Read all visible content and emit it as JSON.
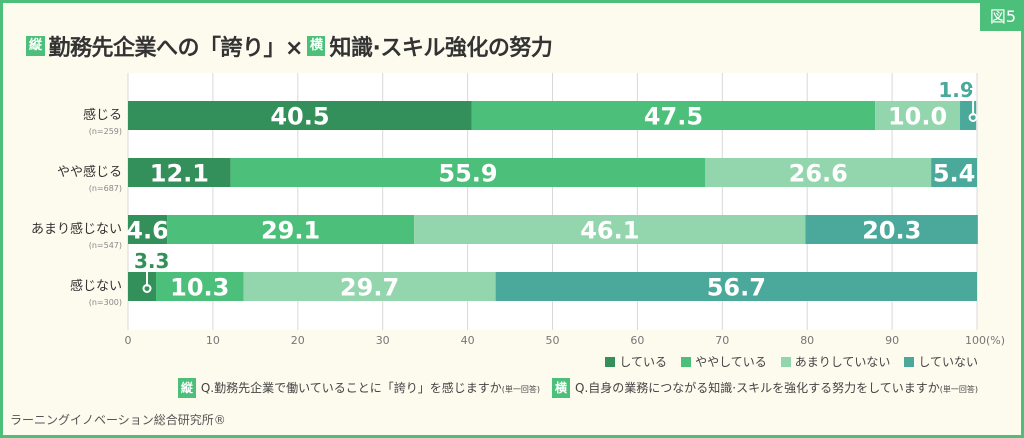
{
  "figure_label": "図5",
  "title": {
    "tag1": "縦",
    "part1": "勤務先企業への「誇り」×",
    "tag2": "横",
    "part2": "知識·スキル強化の努力"
  },
  "colors": {
    "している": "#34905a",
    "ややしている": "#4cc07a",
    "あまりしていない": "#93d5ad",
    "していない": "#4aa99a",
    "border": "#4cc07a",
    "background": "#fdfaee"
  },
  "chart_data": {
    "type": "bar",
    "orientation": "horizontal-stacked-100",
    "categories": [
      "感じる",
      "やや感じる",
      "あまり感じない",
      "感じない"
    ],
    "category_n": [
      "(n=259)",
      "(n=687)",
      "(n=547)",
      "(n=300)"
    ],
    "series": [
      {
        "name": "している",
        "values": [
          40.5,
          12.1,
          4.6,
          3.3
        ]
      },
      {
        "name": "ややしている",
        "values": [
          47.5,
          55.9,
          29.1,
          10.3
        ]
      },
      {
        "name": "あまりしていない",
        "values": [
          10.0,
          26.6,
          46.1,
          29.7
        ]
      },
      {
        "name": "していない",
        "values": [
          1.9,
          5.4,
          20.3,
          56.7
        ]
      }
    ],
    "xlim": [
      0,
      100
    ],
    "xticks": [
      "0",
      "10",
      "20",
      "30",
      "40",
      "50",
      "60",
      "70",
      "80",
      "90",
      "100(%)"
    ],
    "grid": true,
    "legend": "bottom-right"
  },
  "notes": [
    {
      "tag": "縦",
      "text": "Q.勤務先企業で働いていることに「誇り」を感じますか",
      "sub": "(単一回答)"
    },
    {
      "tag": "横",
      "text": "Q.自身の業務につながる知識·スキルを強化する努力をしていますか",
      "sub": "(単一回答)"
    }
  ],
  "footer": "ラーニングイノベーション総合研究所®"
}
